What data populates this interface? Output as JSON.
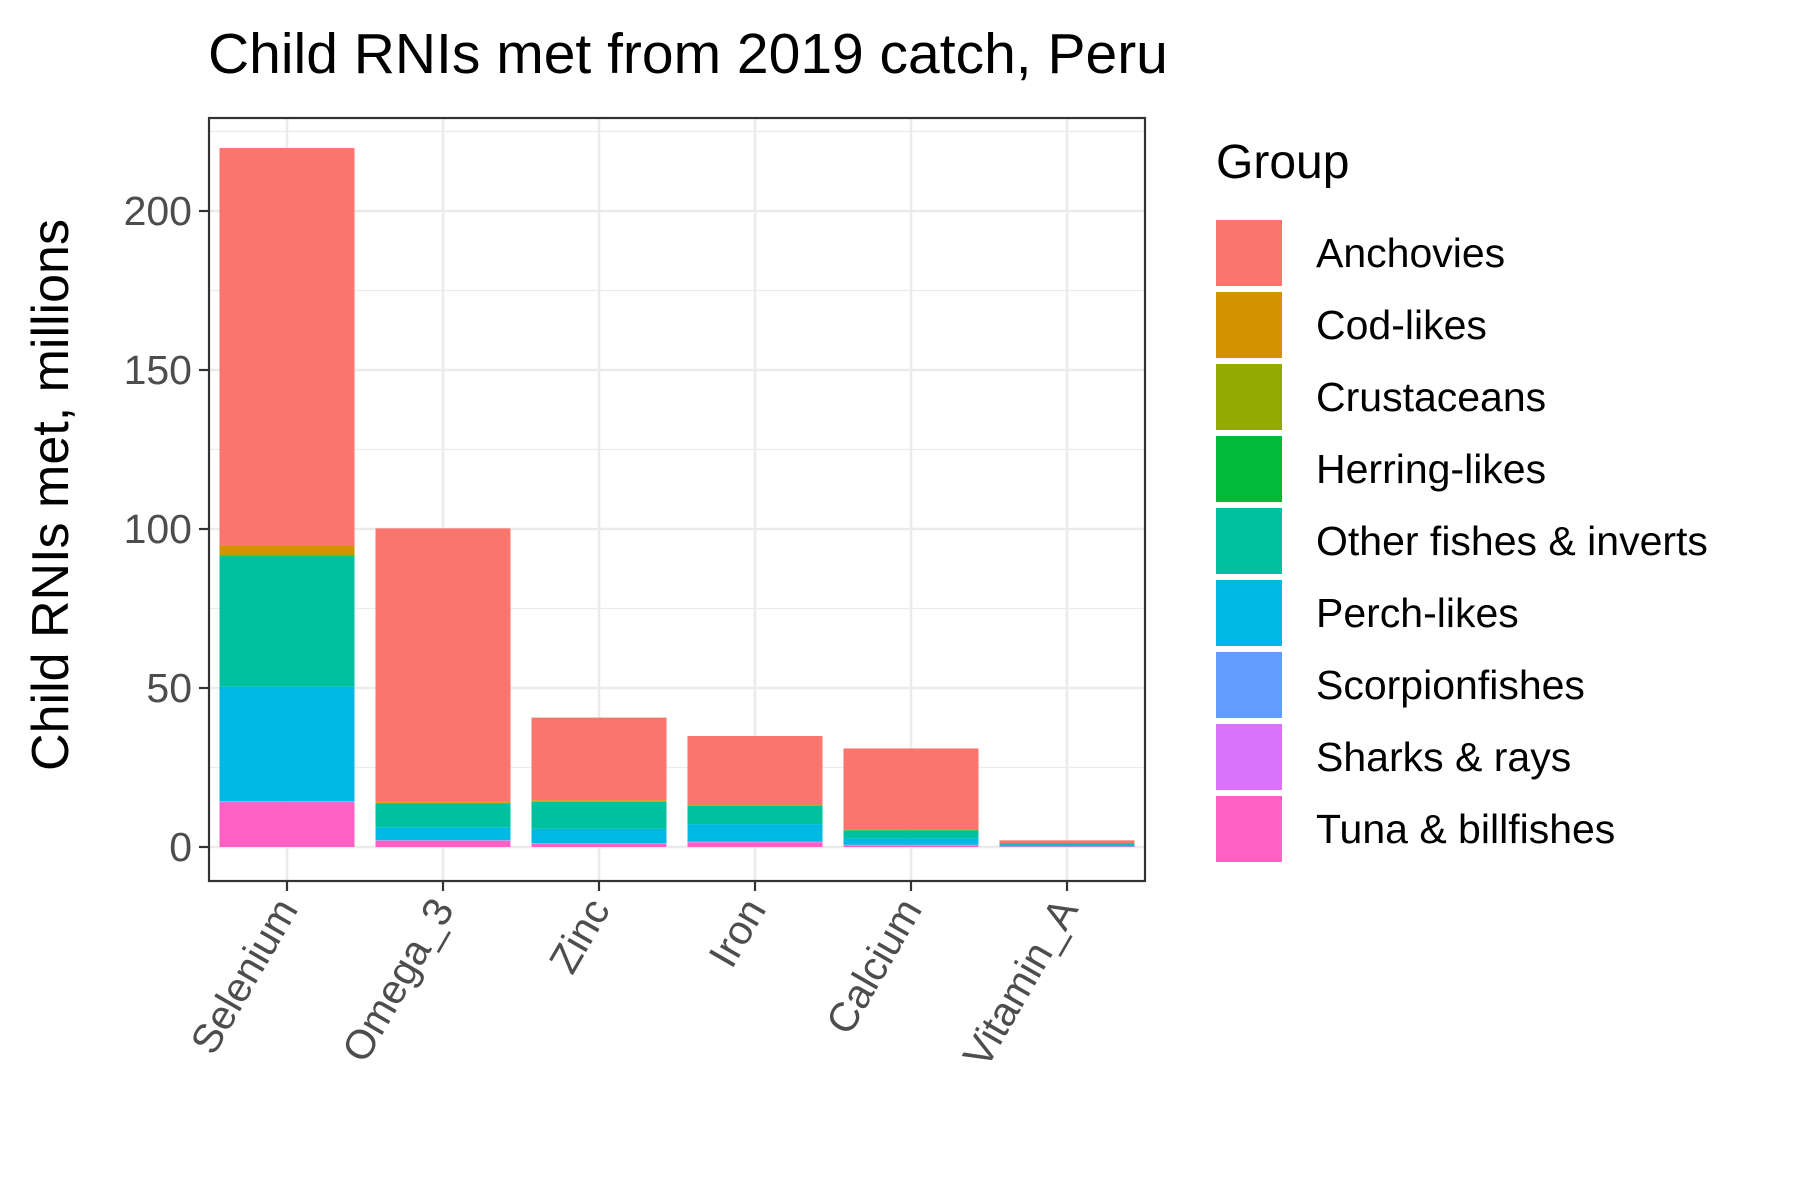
{
  "chart_data": {
    "type": "bar",
    "stacked": true,
    "title": "Child RNIs met from 2019 catch, Peru",
    "xlabel": "",
    "ylabel": "Child RNIs met, millions",
    "ylim": [
      -10,
      230
    ],
    "yticks": [
      0,
      50,
      100,
      150,
      200
    ],
    "grid": true,
    "legend": {
      "title": "Group",
      "placement": "right"
    },
    "categories": [
      "Selenium",
      "Omega_3",
      "Zinc",
      "Iron",
      "Calcium",
      "Vitamin_A"
    ],
    "series": [
      {
        "name": "Tuna & billfishes",
        "color": "#FF61C3",
        "values": [
          14,
          2,
          1,
          1.5,
          0.5,
          0.2
        ]
      },
      {
        "name": "Sharks & rays",
        "color": "#DB72FB",
        "values": [
          0.2,
          0.1,
          0.1,
          0.1,
          0.1,
          0
        ]
      },
      {
        "name": "Scorpionfishes",
        "color": "#619CFF",
        "values": [
          0.2,
          0.1,
          0.1,
          0.1,
          0.1,
          0
        ]
      },
      {
        "name": "Perch-likes",
        "color": "#00B9E3",
        "values": [
          36,
          4,
          4.5,
          5.5,
          2,
          0.6
        ]
      },
      {
        "name": "Other fishes & inverts",
        "color": "#00C19F",
        "values": [
          41,
          7.5,
          8.5,
          5.8,
          2.5,
          0.3
        ]
      },
      {
        "name": "Herring-likes",
        "color": "#00BA38",
        "values": [
          0.3,
          0.1,
          0.1,
          0.1,
          0.1,
          0
        ]
      },
      {
        "name": "Crustaceans",
        "color": "#93AA00",
        "values": [
          0.3,
          0.1,
          0.1,
          0.1,
          0.1,
          0
        ]
      },
      {
        "name": "Cod-likes",
        "color": "#D39200",
        "values": [
          2.8,
          0.3,
          0.3,
          0.2,
          0.1,
          0
        ]
      },
      {
        "name": "Anchovies",
        "color": "#F8766D",
        "values": [
          125,
          86,
          26,
          21.5,
          25.5,
          1
        ]
      }
    ],
    "legend_order": [
      "Anchovies",
      "Cod-likes",
      "Crustaceans",
      "Herring-likes",
      "Other fishes & inverts",
      "Perch-likes",
      "Scorpionfishes",
      "Sharks & rays",
      "Tuna & billfishes"
    ]
  }
}
